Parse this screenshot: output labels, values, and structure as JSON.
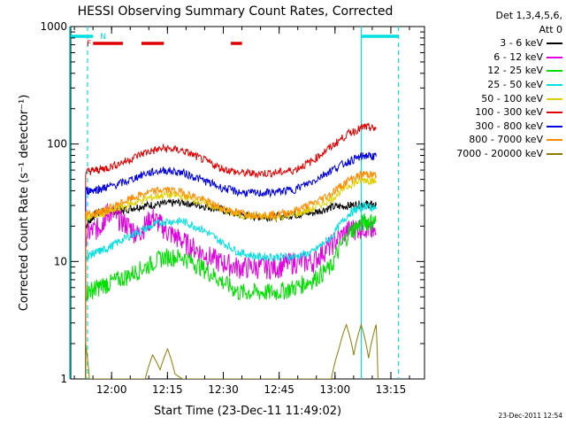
{
  "chart_data": {
    "type": "line",
    "title": "HESSI Observing Summary Count Rates, Corrected",
    "xlabel": "Start Time (23-Dec-11 11:49:02)",
    "ylabel": "Corrected Count Rate (s⁻¹ detector⁻¹)",
    "yscale": "log",
    "ylim": [
      1,
      1000
    ],
    "xlim_minutes_after_start": [
      0,
      95
    ],
    "x_ticks": [
      "12:00",
      "12:15",
      "12:30",
      "12:45",
      "13:00",
      "13:15"
    ],
    "y_ticks": [
      "1",
      "10",
      "100",
      "1000"
    ],
    "detectors_line1": "Det 1,3,4,5,6,",
    "detectors_line2": "Att 0",
    "flag_labels": [
      "F",
      "N"
    ],
    "series": [
      {
        "name": "3 - 6 keV",
        "color": "#000000",
        "x": [
          4,
          7,
          10,
          12,
          15,
          20,
          25,
          30,
          35,
          40,
          45,
          50,
          55,
          60,
          65,
          70,
          75,
          79,
          82
        ],
        "y": [
          20,
          26,
          27,
          27,
          28,
          30,
          31,
          32,
          30,
          28,
          25,
          24,
          24,
          25,
          26,
          29,
          30,
          31,
          30
        ]
      },
      {
        "name": "6 - 12 keV",
        "color": "#e000e0",
        "x": [
          4,
          8,
          10,
          14,
          18,
          22,
          26,
          30,
          35,
          40,
          45,
          50,
          55,
          60,
          65,
          70,
          75,
          79,
          82
        ],
        "y": [
          17,
          20,
          27,
          22,
          17,
          24,
          18,
          15,
          12,
          10,
          9,
          9,
          9,
          10,
          10,
          14,
          19,
          20,
          17
        ]
      },
      {
        "name": "12 - 25 keV",
        "color": "#00e000",
        "x": [
          4,
          7,
          10,
          15,
          20,
          25,
          30,
          35,
          40,
          45,
          50,
          55,
          60,
          65,
          70,
          75,
          79,
          82
        ],
        "y": [
          5.5,
          6,
          6.5,
          7.5,
          9,
          11,
          11,
          9,
          7,
          5.5,
          5.5,
          5.5,
          6,
          7,
          9,
          18,
          22,
          22
        ]
      },
      {
        "name": "25 - 50 keV",
        "color": "#00e0e0",
        "x": [
          4,
          7,
          10,
          15,
          20,
          25,
          30,
          35,
          40,
          45,
          50,
          55,
          60,
          65,
          70,
          75,
          79,
          82
        ],
        "y": [
          11,
          12,
          13,
          16,
          19,
          22,
          22,
          19,
          15,
          12,
          11,
          11,
          11,
          12,
          16,
          26,
          30,
          28
        ]
      },
      {
        "name": "50 - 100 keV",
        "color": "#e0d000",
        "x": [
          4,
          7,
          10,
          15,
          20,
          25,
          30,
          35,
          40,
          45,
          50,
          55,
          60,
          65,
          70,
          75,
          79,
          82
        ],
        "y": [
          24,
          25,
          26,
          30,
          34,
          37,
          36,
          32,
          28,
          25,
          24,
          24,
          25,
          28,
          34,
          45,
          50,
          48
        ]
      },
      {
        "name": "100 - 300 keV",
        "color": "#e00000",
        "x": [
          4,
          7,
          10,
          15,
          20,
          25,
          30,
          35,
          40,
          45,
          50,
          55,
          60,
          65,
          70,
          75,
          79,
          82
        ],
        "y": [
          58,
          60,
          63,
          72,
          85,
          92,
          88,
          75,
          63,
          57,
          56,
          57,
          60,
          72,
          95,
          125,
          140,
          135
        ]
      },
      {
        "name": "300 - 800 keV",
        "color": "#0000e0",
        "x": [
          4,
          7,
          10,
          15,
          20,
          25,
          30,
          35,
          40,
          45,
          50,
          55,
          60,
          65,
          70,
          75,
          79,
          82
        ],
        "y": [
          40,
          41,
          43,
          48,
          56,
          60,
          57,
          50,
          43,
          39,
          38,
          39,
          41,
          48,
          60,
          72,
          80,
          78
        ]
      },
      {
        "name": "800 - 7000 keV",
        "color": "#ff8c00",
        "x": [
          4,
          7,
          10,
          15,
          20,
          25,
          30,
          35,
          40,
          45,
          50,
          55,
          60,
          65,
          70,
          75,
          79,
          82
        ],
        "y": [
          25,
          26,
          28,
          33,
          38,
          41,
          39,
          34,
          29,
          26,
          25,
          25,
          27,
          31,
          38,
          50,
          56,
          54
        ]
      },
      {
        "name": "7000 - 20000 keV",
        "color": "#8b7d00",
        "x": [
          4,
          5,
          20,
          22,
          24,
          26,
          28,
          30,
          55,
          70,
          72,
          74,
          76,
          78,
          80,
          82,
          82.5
        ],
        "y": [
          2,
          1,
          1,
          1.6,
          1.2,
          1.8,
          1.1,
          1,
          1,
          1,
          1.8,
          2.9,
          1.6,
          2.9,
          1.5,
          2.9,
          1
        ]
      }
    ],
    "flag_bars": [
      {
        "label": "F",
        "color": "#e00000",
        "segments": [
          [
            6,
            14
          ],
          [
            19,
            25
          ],
          [
            43,
            46
          ]
        ]
      },
      {
        "label": "N",
        "color": "#00e0e0",
        "segments": [
          [
            0,
            6
          ],
          [
            78,
            88
          ]
        ]
      }
    ],
    "markers": [
      {
        "x": -0.3,
        "color": "#00e0e0",
        "style": "solid"
      },
      {
        "x": 4.5,
        "color": "#00e0e0",
        "style": "dashed"
      },
      {
        "x": 78,
        "color": "#00e0e0",
        "style": "solid"
      },
      {
        "x": 88,
        "color": "#00e0e0",
        "style": "dashed"
      }
    ]
  },
  "timestamp": "23-Dec-2011 12:54"
}
